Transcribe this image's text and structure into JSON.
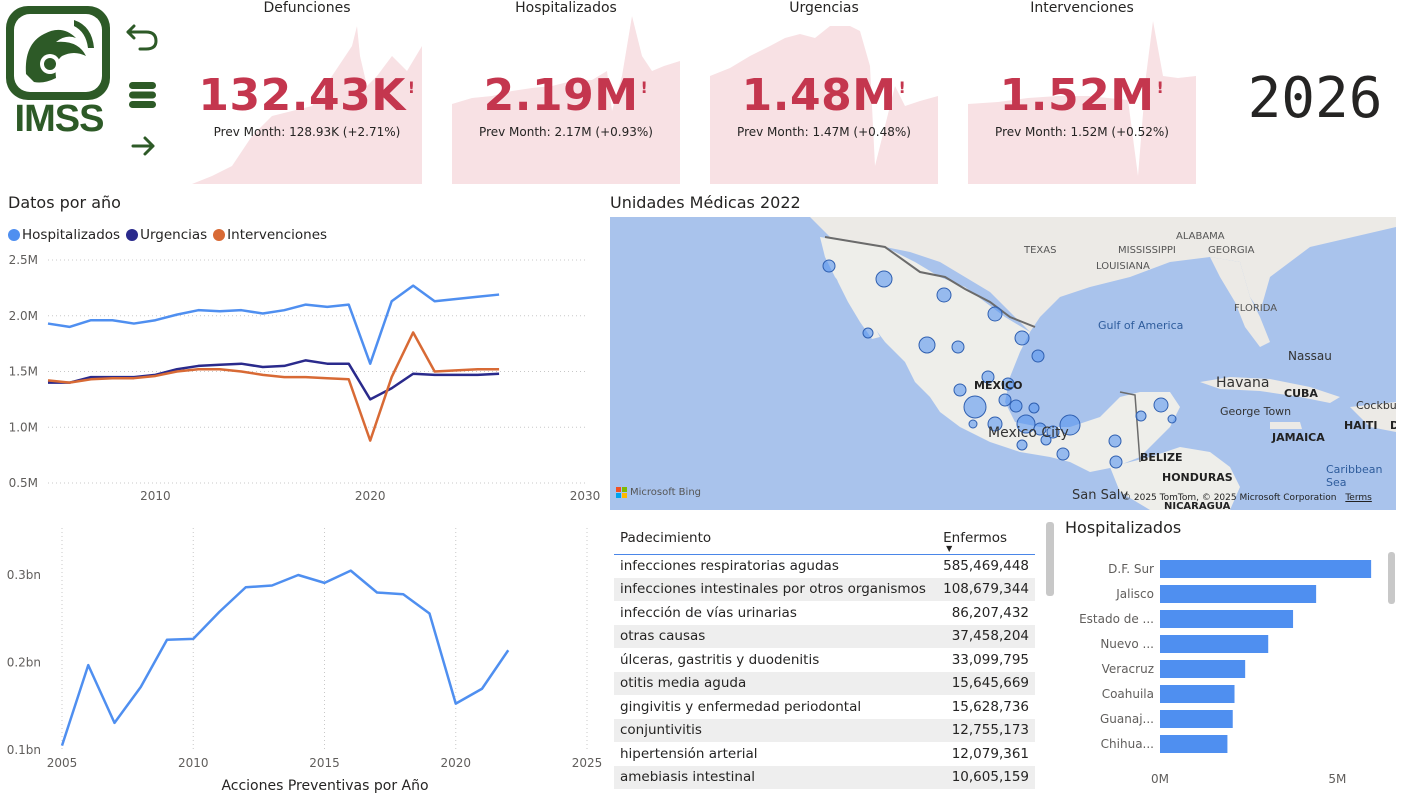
{
  "logo": {
    "text": "IMSS"
  },
  "nav": {
    "back_icon": "undo-arrow-icon",
    "menu_icon": "stack-icon",
    "forward_icon": "right-arrow-icon"
  },
  "kpis": [
    {
      "title": "Defunciones",
      "value": "132.43K",
      "flag": "!",
      "prev": "Prev Month: 128.93K (+2.71%)"
    },
    {
      "title": "Hospitalizados",
      "value": "2.19M",
      "flag": "!",
      "prev": "Prev Month: 2.17M (+0.93%)"
    },
    {
      "title": "Urgencias",
      "value": "1.48M",
      "flag": "!",
      "prev": "Prev Month: 1.47M (+0.48%)"
    },
    {
      "title": "Intervenciones",
      "value": "1.52M",
      "flag": "!",
      "prev": "Prev Month: 1.52M (+0.52%)"
    }
  ],
  "year": "2026",
  "colors": {
    "accent": "#c4364e",
    "hosp": "#4f8ff0",
    "urg": "#2a2a8c",
    "interv": "#d86a35",
    "bar": "#4f8ff0",
    "logo": "#2d5a27"
  },
  "datos_por_anio": {
    "title": "Datos por año",
    "legend": [
      "Hospitalizados",
      "Urgencias",
      "Intervenciones"
    ]
  },
  "map": {
    "title": "Unidades Médicas 2022",
    "labels": {
      "texas": "TEXAS",
      "mississippi": "MISSISSIPPI",
      "alabama": "ALABAMA",
      "georgia": "GEORGIA",
      "louisiana": "LOUISIANA",
      "florida": "FLORIDA",
      "gulf": "Gulf of America",
      "nassau": "Nassau",
      "havana": "Havana",
      "cuba": "CUBA",
      "georgetown": "George Town",
      "cockburn": "Cockburn",
      "mexico": "MEXICO",
      "mexico_city": "Mexico City",
      "haiti": "HAITI",
      "d": "D",
      "jamaica": "JAMAICA",
      "belize": "BELIZE",
      "caribbean": "Caribbean Sea",
      "honduras": "HONDURAS",
      "san_salvador": "San Salv",
      "nicaragua": "NICARAGUA"
    },
    "bing": "Microsoft Bing",
    "copyright": "© 2025 TomTom, © 2025 Microsoft Corporation",
    "terms": "Terms"
  },
  "padecimientos": {
    "col1": "Padecimiento",
    "col2": "Enfermos",
    "rows": [
      {
        "name": "infecciones respiratorias agudas",
        "value": "585,469,448"
      },
      {
        "name": "infecciones intestinales por otros organismos",
        "value": "108,679,344"
      },
      {
        "name": "infección de vías urinarias",
        "value": "86,207,432"
      },
      {
        "name": "otras causas",
        "value": "37,458,204"
      },
      {
        "name": "úlceras, gastritis y duodenitis",
        "value": "33,099,795"
      },
      {
        "name": "otitis media aguda",
        "value": "15,645,669"
      },
      {
        "name": "gingivitis y enfermedad periodontal",
        "value": "15,628,736"
      },
      {
        "name": "conjuntivitis",
        "value": "12,755,173"
      },
      {
        "name": "hipertensión arterial",
        "value": "12,079,361"
      },
      {
        "name": "amebiasis intestinal",
        "value": "10,605,159"
      }
    ]
  },
  "chart_data": [
    {
      "type": "line",
      "title": "Datos por año",
      "xlim": [
        2005,
        2030
      ],
      "ylim": [
        0.5,
        2.5
      ],
      "yticks": [
        "0.5M",
        "1.0M",
        "1.5M",
        "2.0M",
        "2.5M"
      ],
      "xticks": [
        "2010",
        "2020",
        "2030"
      ],
      "x": [
        2005,
        2006,
        2007,
        2008,
        2009,
        2010,
        2011,
        2012,
        2013,
        2014,
        2015,
        2016,
        2017,
        2018,
        2019,
        2020,
        2021,
        2022,
        2023,
        2024,
        2025,
        2026
      ],
      "series": [
        {
          "name": "Hospitalizados",
          "values": [
            1.93,
            1.9,
            1.96,
            1.96,
            1.93,
            1.96,
            2.01,
            2.05,
            2.04,
            2.05,
            2.02,
            2.05,
            2.1,
            2.08,
            2.1,
            1.57,
            2.13,
            2.27,
            2.13,
            2.15,
            2.17,
            2.19
          ]
        },
        {
          "name": "Urgencias",
          "values": [
            1.4,
            1.4,
            1.45,
            1.45,
            1.45,
            1.47,
            1.52,
            1.55,
            1.56,
            1.57,
            1.54,
            1.55,
            1.6,
            1.57,
            1.57,
            1.25,
            1.35,
            1.48,
            1.47,
            1.47,
            1.47,
            1.48
          ]
        },
        {
          "name": "Intervenciones",
          "values": [
            1.42,
            1.4,
            1.43,
            1.44,
            1.44,
            1.46,
            1.5,
            1.52,
            1.52,
            1.5,
            1.47,
            1.45,
            1.45,
            1.44,
            1.43,
            0.88,
            1.45,
            1.85,
            1.5,
            1.51,
            1.52,
            1.52
          ]
        }
      ]
    },
    {
      "type": "line",
      "title": "Acciones Preventivas por Año",
      "xlim": [
        2005,
        2025
      ],
      "ylim": [
        0.1,
        0.3
      ],
      "yticks": [
        "0.1bn",
        "0.2bn",
        "0.3bn"
      ],
      "xticks": [
        "2005",
        "2010",
        "2015",
        "2020",
        "2025"
      ],
      "x": [
        2005,
        2006,
        2007,
        2008,
        2009,
        2010,
        2011,
        2012,
        2013,
        2014,
        2015,
        2016,
        2017,
        2018,
        2019,
        2020,
        2021,
        2022
      ],
      "series": [
        {
          "values": [
            0.105,
            0.197,
            0.131,
            0.172,
            0.226,
            0.227,
            0.258,
            0.286,
            0.288,
            0.3,
            0.291,
            0.305,
            0.28,
            0.278,
            0.256,
            0.153,
            0.17,
            0.214
          ]
        }
      ]
    },
    {
      "type": "bar",
      "title": "Hospitalizados",
      "orientation": "horizontal",
      "categories": [
        "D.F. Sur",
        "Jalisco",
        "Estado de ...",
        "Nuevo ...",
        "Veracruz",
        "Coahuila",
        "Guanaj...",
        "Chihua..."
      ],
      "values": [
        5.95,
        4.4,
        3.75,
        3.05,
        2.4,
        2.1,
        2.05,
        1.9
      ],
      "xticks": [
        "0M",
        "5M"
      ],
      "xlim": [
        0,
        6.2
      ]
    }
  ]
}
